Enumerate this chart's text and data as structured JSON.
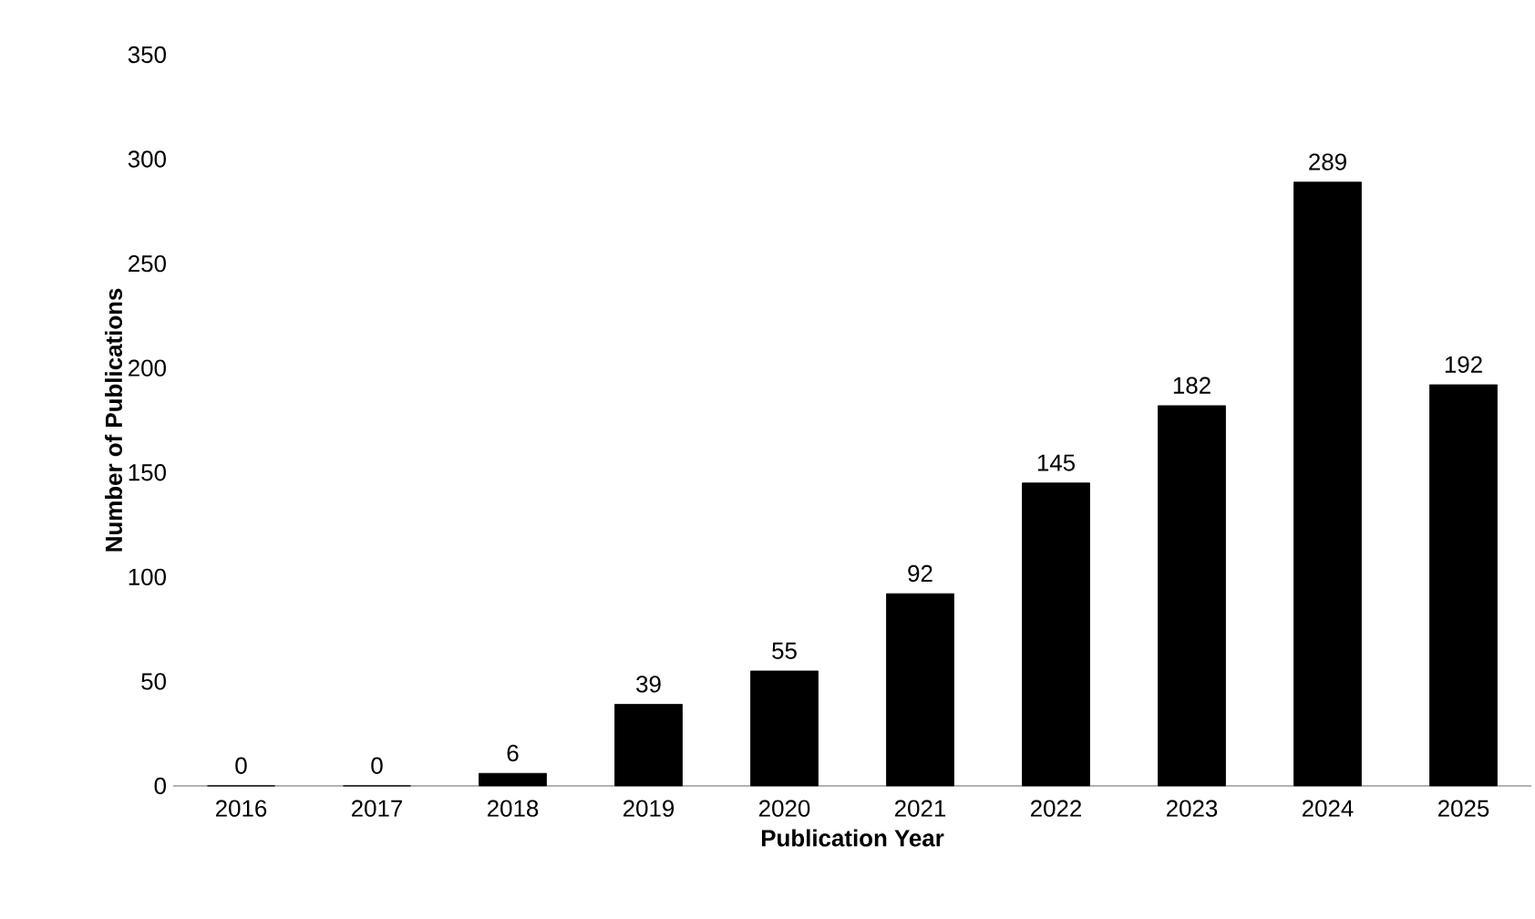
{
  "chart_data": {
    "type": "bar",
    "xlabel": "Publication Year",
    "ylabel": "Number of Publications",
    "categories": [
      "2016",
      "2017",
      "2018",
      "2019",
      "2020",
      "2021",
      "2022",
      "2023",
      "2024",
      "2025"
    ],
    "values": [
      0,
      0,
      6,
      39,
      55,
      92,
      145,
      182,
      289,
      192
    ],
    "color": "#000000",
    "ylim": [
      0,
      350
    ],
    "yticks": [
      0,
      50,
      100,
      150,
      200,
      250,
      300,
      350
    ],
    "data_labels": true
  }
}
